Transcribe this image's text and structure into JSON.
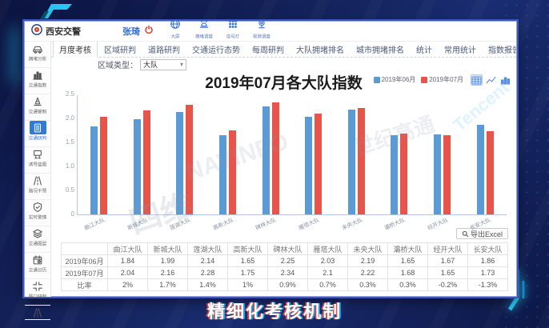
{
  "window_title": "西安交警",
  "header": {
    "user": "张琦",
    "quick_icons": [
      {
        "icon": "big-screen-icon",
        "label": "大屏"
      },
      {
        "icon": "congestion-dispatch-icon",
        "label": "拥堵调度"
      },
      {
        "icon": "signal-light-icon",
        "label": "信号灯"
      },
      {
        "icon": "video-dispatch-icon",
        "label": "视频调度"
      }
    ]
  },
  "sidebar": {
    "items": [
      {
        "icon": "car-icon",
        "label": "拥堵分析",
        "active": false
      },
      {
        "icon": "index-chart-icon",
        "label": "交通指数",
        "active": false
      },
      {
        "icon": "cone-icon",
        "label": "交通管制",
        "active": false
      },
      {
        "icon": "document-icon",
        "label": "交通研判",
        "active": true
      },
      {
        "icon": "billboard-icon",
        "label": "诱导蓝图",
        "active": false
      },
      {
        "icon": "road-icon",
        "label": "路况干预",
        "active": false
      },
      {
        "icon": "shield-icon",
        "label": "实时警情",
        "active": false
      },
      {
        "icon": "layers-icon",
        "label": "交通图层",
        "active": false
      },
      {
        "icon": "calendar-icon",
        "label": "交通日历",
        "active": false
      },
      {
        "icon": "crossroad-icon",
        "label": "路口研判",
        "active": false
      },
      {
        "icon": "highway-icon",
        "label": "",
        "active": false
      }
    ]
  },
  "nav_tabs": {
    "active": "月度考核",
    "items": [
      "月度考核",
      "区域研判",
      "道路研判",
      "交通运行态势",
      "每周研判",
      "大队拥堵排名",
      "城市拥堵排名",
      "统计",
      "常用统计",
      "指数报告"
    ]
  },
  "filter": {
    "label": "区域类型：",
    "value": "大队"
  },
  "chart_data": {
    "type": "bar",
    "title": "2019年07月各大队指数",
    "categories": [
      "曲江大队",
      "新城大队",
      "莲湖大队",
      "高新大队",
      "碑林大队",
      "雁塔大队",
      "未央大队",
      "灞桥大队",
      "经开大队",
      "长安大队"
    ],
    "series": [
      {
        "name": "2019年06月",
        "color": "#5b9bd5",
        "values": [
          1.84,
          1.99,
          2.14,
          1.65,
          2.25,
          2.03,
          2.19,
          1.65,
          1.67,
          1.86
        ]
      },
      {
        "name": "2019年07月",
        "color": "#e8544a",
        "values": [
          2.04,
          2.16,
          2.28,
          1.75,
          2.34,
          2.1,
          2.22,
          1.68,
          1.65,
          1.73
        ]
      }
    ],
    "ylim": [
      0,
      2.5
    ],
    "yticks": [
      "0",
      "0.5",
      "1.0",
      "1.5",
      "2.0",
      "2.5"
    ],
    "legend_position": "top-right",
    "grid": false,
    "xlabel": "",
    "ylabel": ""
  },
  "toolbar": {
    "export_label": "导出Excel"
  },
  "table": {
    "columns": [
      "",
      "曲江大队",
      "新城大队",
      "莲湖大队",
      "高新大队",
      "碑林大队",
      "雁塔大队",
      "未央大队",
      "灞桥大队",
      "经开大队",
      "长安大队"
    ],
    "rows": [
      {
        "label": "2019年06月",
        "values": [
          "1.84",
          "1.99",
          "2.14",
          "1.65",
          "2.25",
          "2.03",
          "2.19",
          "1.65",
          "1.67",
          "1.86"
        ]
      },
      {
        "label": "2019年07月",
        "values": [
          "2.04",
          "2.16",
          "2.28",
          "1.75",
          "2.34",
          "2.1",
          "2.22",
          "1.68",
          "1.65",
          "1.73"
        ]
      },
      {
        "label": "比率",
        "values": [
          "2%",
          "1.7%",
          "1.4%",
          "1%",
          "0.9%",
          "0.7%",
          "0.3%",
          "0.3%",
          "-0.2%",
          "-1.3%"
        ]
      }
    ]
  },
  "caption": "精细化考核机制",
  "watermarks": [
    "四维",
    "NAVINFO",
    "世纪高通",
    "Tencent"
  ],
  "colors": {
    "accent_blue": "#2f6bd8",
    "active_item": "#2f7cd8",
    "cyan_deco": "#27c6f0"
  }
}
